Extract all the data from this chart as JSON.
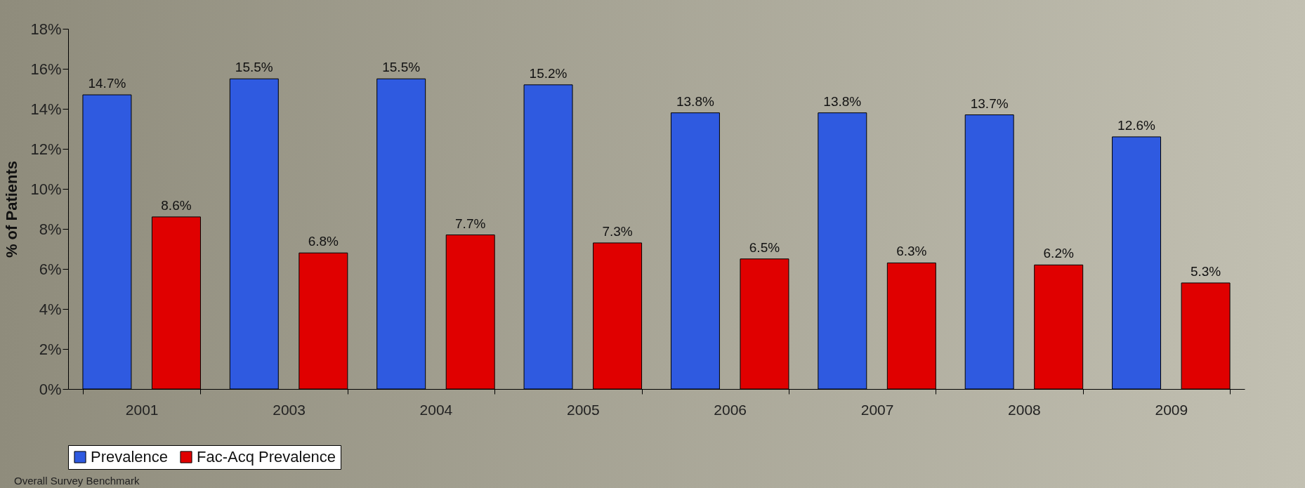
{
  "chart_data": {
    "type": "bar",
    "ylabel": "% of Patients",
    "categories": [
      "2001",
      "2003",
      "2004",
      "2005",
      "2006",
      "2007",
      "2008",
      "2009"
    ],
    "series": [
      {
        "name": "Prevalence",
        "color": "#2f5ae0",
        "values": [
          14.7,
          15.5,
          15.5,
          15.2,
          13.8,
          13.8,
          13.7,
          12.6
        ],
        "value_labels": [
          "14.7%",
          "15.5%",
          "15.5%",
          "15.2%",
          "13.8%",
          "13.8%",
          "13.7%",
          "12.6%"
        ]
      },
      {
        "name": "Fac-Acq Prevalence",
        "color": "#e00000",
        "values": [
          8.6,
          6.8,
          7.7,
          7.3,
          6.5,
          6.3,
          6.2,
          5.3
        ],
        "value_labels": [
          "8.6%",
          "6.8%",
          "7.7%",
          "7.3%",
          "6.5%",
          "6.3%",
          "6.2%",
          "5.3%"
        ]
      }
    ],
    "ylim": [
      0,
      18
    ],
    "yticks": [
      {
        "value": 0,
        "label": "0%"
      },
      {
        "value": 2,
        "label": "2%"
      },
      {
        "value": 4,
        "label": "4%"
      },
      {
        "value": 6,
        "label": "6%"
      },
      {
        "value": 8,
        "label": "8%"
      },
      {
        "value": 10,
        "label": "10%"
      },
      {
        "value": 12,
        "label": "12%"
      },
      {
        "value": 14,
        "label": "14%"
      },
      {
        "value": 16,
        "label": "16%"
      },
      {
        "value": 18,
        "label": "18%"
      }
    ],
    "grid": false,
    "legend": "bottom",
    "annotations": [
      "Overall Survey Benchmark"
    ]
  }
}
